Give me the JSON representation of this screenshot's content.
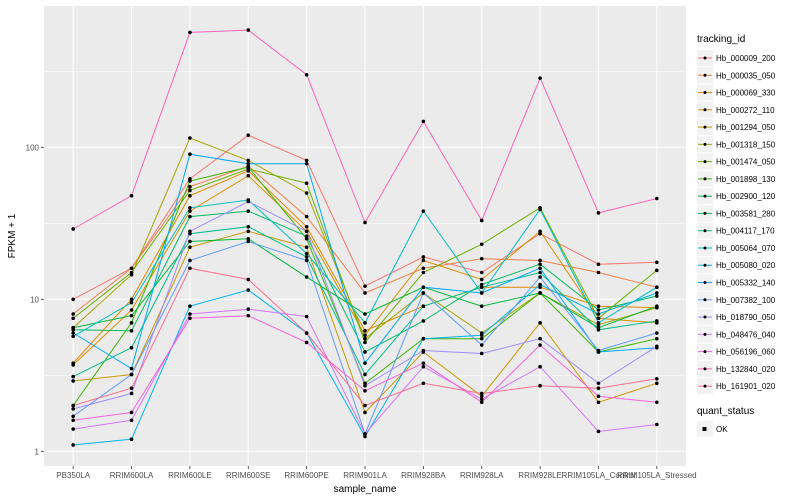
{
  "chart_data": {
    "type": "line",
    "xlabel": "sample_name",
    "ylabel": "FPKM + 1",
    "yscale": "log10",
    "ylim": [
      0.8,
      850
    ],
    "yticks": [
      1,
      10,
      100
    ],
    "ytick_labels": [
      "1",
      "10",
      "100"
    ],
    "grid": true,
    "legend_position": "right",
    "categories": [
      "PB350LA",
      "RRIM600LA",
      "RRIM600LE",
      "RRIM600SE",
      "RRIM600PE",
      "RRIM901LA",
      "RRIM928BA",
      "RRIM928LA",
      "RRIM928LE",
      "RRIM105LA_Control",
      "RRIM105LA_Stressed"
    ],
    "legend_title": "tracking_id",
    "shape_legend": {
      "title": "quant_status",
      "items": [
        "OK"
      ]
    },
    "series": [
      {
        "name": "Hb_000009_200",
        "color": "#F8766D",
        "values": [
          10,
          16,
          62,
          120,
          82,
          12.2,
          19,
          15,
          27,
          17,
          17.5
        ]
      },
      {
        "name": "Hb_000035_050",
        "color": "#EF7F49",
        "values": [
          8,
          16,
          55,
          75,
          35,
          11,
          16,
          18.5,
          18,
          15,
          12
        ]
      },
      {
        "name": "Hb_000069_330",
        "color": "#E58700",
        "values": [
          3.8,
          10,
          48,
          70,
          30,
          6.2,
          9,
          12,
          12,
          9,
          8.8
        ]
      },
      {
        "name": "Hb_000272_110",
        "color": "#D89000",
        "values": [
          3.7,
          8.5,
          38,
          65,
          28,
          5.8,
          18,
          13.5,
          28,
          7.5,
          7
        ]
      },
      {
        "name": "Hb_001294_050",
        "color": "#C99800",
        "values": [
          2.9,
          3.2,
          22,
          28,
          22,
          1.8,
          4.5,
          2.3,
          7,
          2.1,
          2.8
        ]
      },
      {
        "name": "Hb_001318_150",
        "color": "#A3A500",
        "values": [
          6.5,
          14.5,
          115,
          82,
          50,
          5.5,
          11,
          6,
          11,
          6.8,
          8.8
        ]
      },
      {
        "name": "Hb_001474_050",
        "color": "#6BB100",
        "values": [
          7.5,
          15,
          52,
          72,
          58,
          5.2,
          15,
          23,
          40,
          7.5,
          15.5
        ]
      },
      {
        "name": "Hb_001898_130",
        "color": "#39B600",
        "values": [
          2,
          7,
          60,
          74,
          25,
          2.8,
          5.5,
          5.5,
          11,
          4.5,
          5.5
        ]
      },
      {
        "name": "Hb_002900_120",
        "color": "#00BA38",
        "values": [
          6.5,
          7.8,
          24,
          25,
          14,
          8,
          12,
          9,
          11,
          6.5,
          9
        ]
      },
      {
        "name": "Hb_003581_280",
        "color": "#00BD5F",
        "values": [
          6.3,
          6.2,
          35,
          38,
          26,
          4.5,
          7.2,
          12.5,
          17,
          8.5,
          10.5
        ]
      },
      {
        "name": "Hb_004117_170",
        "color": "#00C08B",
        "values": [
          3.1,
          4.8,
          27,
          30,
          19,
          3.2,
          9,
          12,
          15,
          6.3,
          7.2
        ]
      },
      {
        "name": "Hb_005064_070",
        "color": "#00BFC4",
        "values": [
          5.7,
          9.5,
          40,
          45,
          20,
          7,
          38,
          11,
          39,
          7,
          12
        ]
      },
      {
        "name": "Hb_005080_020",
        "color": "#00B4F0",
        "values": [
          1.1,
          1.2,
          9,
          11.5,
          6,
          1.25,
          5.5,
          5.8,
          12.5,
          8,
          11
        ]
      },
      {
        "name": "Hb_005332_140",
        "color": "#00A9FF",
        "values": [
          6,
          3.5,
          90,
          78,
          78,
          3.8,
          12,
          11,
          16,
          4.5,
          4.8
        ]
      },
      {
        "name": "Hb_007382_100",
        "color": "#619CFF",
        "values": [
          1.7,
          3.2,
          18,
          24,
          18,
          1.3,
          11,
          5,
          14,
          4.6,
          6
        ]
      },
      {
        "name": "Hb_018790_050",
        "color": "#9F8CFF",
        "values": [
          1.9,
          2.4,
          28,
          44,
          28,
          2.7,
          4.6,
          4.4,
          5.5,
          2.8,
          4.9
        ]
      },
      {
        "name": "Hb_048476_040",
        "color": "#D575FE",
        "values": [
          1.4,
          1.6,
          8,
          8.6,
          7.7,
          1.3,
          3.6,
          2.2,
          3.6,
          1.35,
          1.5
        ]
      },
      {
        "name": "Hb_056196_060",
        "color": "#F962DD",
        "values": [
          1.6,
          1.8,
          7.5,
          7.8,
          5.2,
          2.5,
          3.8,
          2.1,
          5,
          2.3,
          2.1
        ]
      },
      {
        "name": "Hb_132840_020",
        "color": "#FF62BC",
        "values": [
          29,
          48,
          570,
          590,
          300,
          32,
          148,
          33,
          285,
          37,
          46
        ]
      },
      {
        "name": "Hb_161901_020",
        "color": "#FF6C91",
        "values": [
          2,
          2.6,
          16,
          13.5,
          6,
          2,
          2.8,
          2.4,
          2.7,
          2.6,
          3
        ]
      }
    ]
  }
}
